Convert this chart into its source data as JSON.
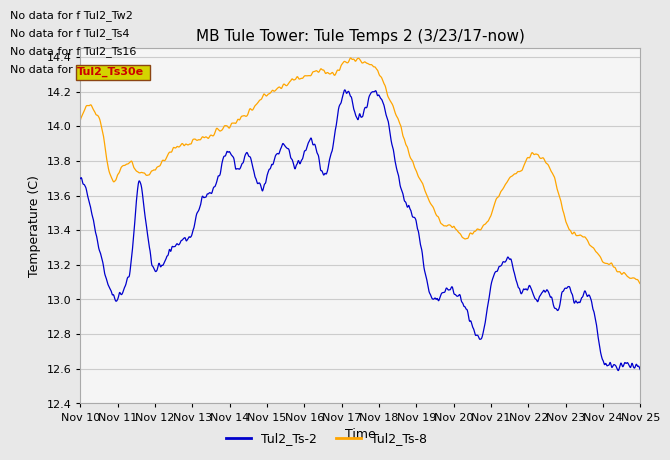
{
  "title": "MB Tule Tower: Tule Temps 2 (3/23/17-now)",
  "xlabel": "Time",
  "ylabel": "Temperature (C)",
  "ylim": [
    12.4,
    14.45
  ],
  "yticks": [
    12.4,
    12.6,
    12.8,
    13.0,
    13.2,
    13.4,
    13.6,
    13.8,
    14.0,
    14.2,
    14.4
  ],
  "xlim": [
    0,
    15
  ],
  "xtick_labels": [
    "Nov 10",
    "Nov 11",
    "Nov 12",
    "Nov 13",
    "Nov 14",
    "Nov 15",
    "Nov 16",
    "Nov 17",
    "Nov 18",
    "Nov 19",
    "Nov 20",
    "Nov 21",
    "Nov 22",
    "Nov 23",
    "Nov 24",
    "Nov 25"
  ],
  "no_data_labels": [
    "No data for f Tul2_Tw2",
    "No data for f Tul2_Ts4",
    "No data for f Tul2_Ts16",
    "No data for f "
  ],
  "highlight_text": "Tul2_Ts30e",
  "color_blue": "#0000cc",
  "color_orange": "#ffa500",
  "legend_labels": [
    "Tul2_Ts-2",
    "Tul2_Ts-8"
  ],
  "background_color": "#e8e8e8",
  "plot_bg_color": "#f5f5f5",
  "grid_color": "#cccccc",
  "title_fontsize": 11,
  "axis_fontsize": 9,
  "tick_fontsize": 8,
  "nodata_fontsize": 8
}
